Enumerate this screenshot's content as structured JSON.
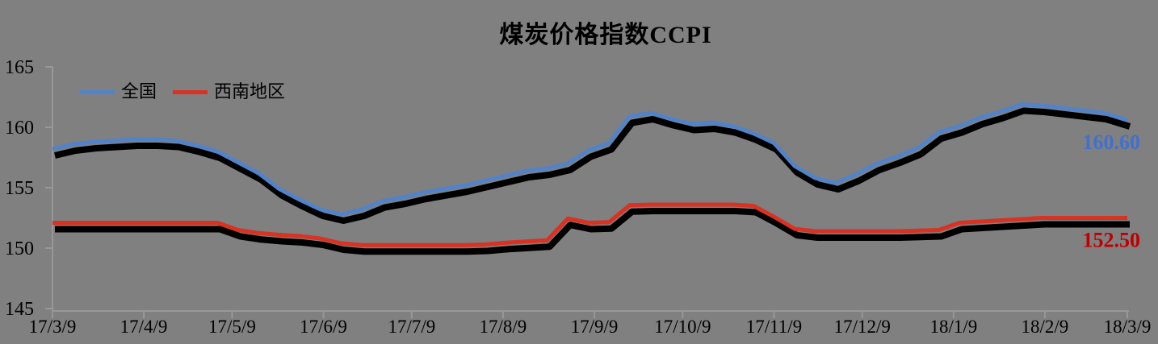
{
  "title": "煤炭价格指数CCPI",
  "colors": {
    "background": "#808080",
    "axis": "#989898",
    "text": "#000000",
    "shadow": "#000000"
  },
  "legend": [
    {
      "label": "全国",
      "color": "#5283C9"
    },
    {
      "label": "西南地区",
      "color": "#D93122"
    }
  ],
  "chart_data": {
    "type": "line",
    "title": "煤炭价格指数CCPI",
    "grid": false,
    "legend_position": "top-left",
    "ylim": [
      145,
      165
    ],
    "yticks": [
      "165",
      "160",
      "155",
      "150",
      "145"
    ],
    "ytick_values": [
      165,
      160,
      155,
      150,
      145
    ],
    "xtick_labels": [
      "17/3/9",
      "17/4/9",
      "17/5/9",
      "17/6/9",
      "17/7/9",
      "17/8/9",
      "17/9/9",
      "17/10/9",
      "17/11/9",
      "17/12/9",
      "18/1/9",
      "18/2/9",
      "18/3/9"
    ],
    "xtick_days": [
      0,
      31,
      61,
      92,
      122,
      153,
      184,
      214,
      245,
      275,
      306,
      337,
      365
    ],
    "x_range_days": [
      0,
      365
    ],
    "days": [
      0,
      7,
      14,
      21,
      28,
      35,
      42,
      49,
      56,
      63,
      70,
      77,
      84,
      91,
      98,
      105,
      112,
      119,
      126,
      133,
      140,
      147,
      154,
      161,
      168,
      175,
      182,
      189,
      196,
      203,
      210,
      217,
      224,
      231,
      238,
      245,
      252,
      259,
      266,
      273,
      280,
      287,
      294,
      301,
      308,
      315,
      322,
      329,
      336,
      343,
      350,
      357,
      365
    ],
    "series": [
      {
        "name": "全国",
        "color": "#5283C9",
        "end_label": "160.60",
        "end_label_color": "#4170CE",
        "values": [
          158.2,
          158.6,
          158.8,
          158.9,
          159.0,
          159.0,
          158.9,
          158.5,
          158.0,
          157.1,
          156.2,
          154.9,
          154.0,
          153.2,
          152.8,
          153.2,
          153.9,
          154.2,
          154.6,
          154.9,
          155.2,
          155.6,
          156.0,
          156.4,
          156.6,
          157.0,
          158.1,
          158.7,
          160.9,
          161.2,
          160.7,
          160.3,
          160.4,
          160.1,
          159.5,
          158.7,
          156.8,
          155.8,
          155.4,
          156.1,
          157.0,
          157.6,
          158.3,
          159.6,
          160.1,
          160.8,
          161.3,
          161.9,
          161.8,
          161.6,
          161.4,
          161.2,
          160.6
        ]
      },
      {
        "name": "西南地区",
        "color": "#D93122",
        "end_label": "152.50",
        "end_label_color": "#C00000",
        "values": [
          152.1,
          152.1,
          152.1,
          152.1,
          152.1,
          152.1,
          152.1,
          152.1,
          152.1,
          151.5,
          151.25,
          151.1,
          151.0,
          150.8,
          150.4,
          150.25,
          150.25,
          150.25,
          150.25,
          150.25,
          150.25,
          150.3,
          150.45,
          150.55,
          150.65,
          152.45,
          152.1,
          152.15,
          153.55,
          153.6,
          153.6,
          153.6,
          153.6,
          153.6,
          153.5,
          152.6,
          151.6,
          151.4,
          151.4,
          151.4,
          151.4,
          151.4,
          151.45,
          151.5,
          152.1,
          152.2,
          152.3,
          152.4,
          152.5,
          152.5,
          152.5,
          152.5,
          152.5
        ]
      }
    ]
  }
}
